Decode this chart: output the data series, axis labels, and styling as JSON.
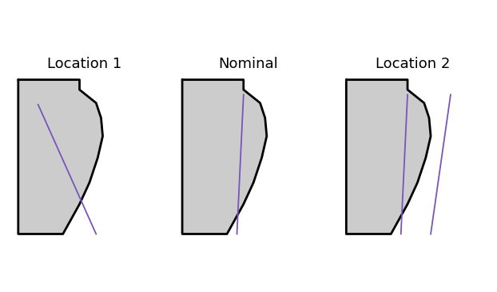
{
  "background_color": "#ffffff",
  "shape_fill": "#cccccc",
  "shape_edge": "#000000",
  "shape_edge_lw": 2.0,
  "line_color": "#7755bb",
  "line_lw": 1.3,
  "panel_title_fontsize": 13,
  "panels": [
    {
      "title": "Location 1",
      "blue_lines": [
        {
          "x": [
            0.17,
            0.52
          ],
          "y": [
            0.82,
            0.04
          ]
        }
      ]
    },
    {
      "title": "Nominal",
      "blue_lines": [
        {
          "x": [
            0.42,
            0.38
          ],
          "y": [
            0.88,
            0.04
          ]
        }
      ]
    },
    {
      "title": "Location 2",
      "blue_lines": [
        {
          "x": [
            0.42,
            0.38
          ],
          "y": [
            0.88,
            0.04
          ]
        },
        {
          "x": [
            0.68,
            0.56
          ],
          "y": [
            0.88,
            0.04
          ]
        }
      ]
    }
  ],
  "shape_vx": [
    0.05,
    0.42,
    0.42,
    0.52,
    0.55,
    0.56,
    0.53,
    0.48,
    0.42,
    0.37,
    0.32,
    0.05
  ],
  "shape_vy": [
    0.97,
    0.97,
    0.91,
    0.83,
    0.74,
    0.63,
    0.5,
    0.35,
    0.22,
    0.13,
    0.04,
    0.04
  ],
  "xlim": [
    0.0,
    0.9
  ],
  "ylim": [
    0.0,
    1.0
  ]
}
